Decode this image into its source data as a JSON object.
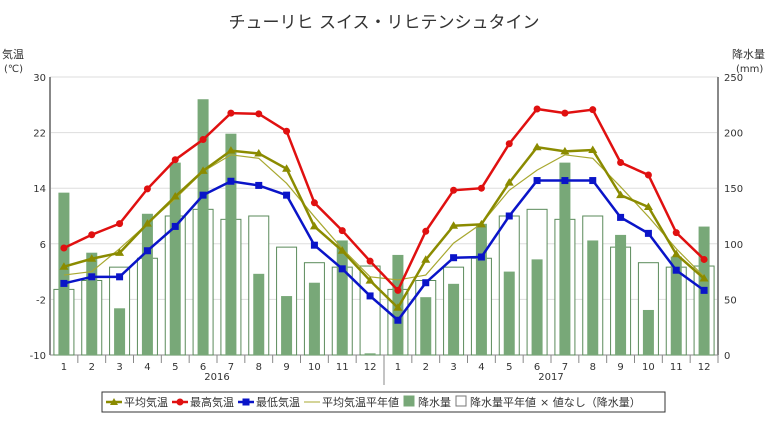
{
  "chart_data": {
    "type": "bar+line",
    "title": "チューリヒ スイス・リヒテンシュタイン",
    "ylabel_left": "気温",
    "yunit_left": "(℃)",
    "ylabel_right": "降水量",
    "yunit_right": "(mm)",
    "ylim_left": [
      -10,
      30
    ],
    "yticks_left": [
      -10,
      -2,
      6,
      14,
      22,
      30
    ],
    "ylim_right": [
      0,
      250
    ],
    "yticks_right": [
      0,
      50,
      100,
      150,
      200,
      250
    ],
    "categories": [
      "1",
      "2",
      "3",
      "4",
      "5",
      "6",
      "7",
      "8",
      "9",
      "10",
      "11",
      "12",
      "1",
      "2",
      "3",
      "4",
      "5",
      "6",
      "7",
      "8",
      "9",
      "10",
      "11",
      "12"
    ],
    "year_labels": [
      "2016",
      "2017"
    ],
    "grid": true,
    "legend_position": "bottom",
    "series": [
      {
        "name": "平均気温",
        "type": "line",
        "axis": "left",
        "color": "#8b8b00",
        "marker": "triangle",
        "values": [
          2.7,
          3.85,
          4.7,
          8.9,
          12.8,
          16.5,
          19.4,
          19.0,
          16.8,
          8.5,
          5.0,
          0.7,
          -3.2,
          3.7,
          8.6,
          8.8,
          14.8,
          19.9,
          19.3,
          19.5,
          13.0,
          11.3,
          4.5,
          1.0
        ]
      },
      {
        "name": "最高気温",
        "type": "line",
        "axis": "left",
        "color": "#e01010",
        "marker": "circle",
        "values": [
          5.4,
          7.3,
          8.9,
          13.9,
          18.1,
          21.0,
          24.8,
          24.7,
          22.2,
          11.9,
          7.9,
          3.5,
          -0.7,
          7.8,
          13.7,
          14.0,
          20.4,
          25.4,
          24.8,
          25.3,
          17.7,
          15.9,
          7.6,
          3.75
        ]
      },
      {
        "name": "最低気温",
        "type": "line",
        "axis": "left",
        "color": "#0a14c8",
        "marker": "square",
        "values": [
          0.3,
          1.25,
          1.25,
          5.0,
          8.5,
          13.0,
          15.0,
          14.4,
          13.0,
          5.8,
          2.4,
          -1.5,
          -5.0,
          0.4,
          4.0,
          4.1,
          10.0,
          15.1,
          15.1,
          15.1,
          9.8,
          7.5,
          2.2,
          -0.7
        ]
      },
      {
        "name": "平均気温平年値",
        "type": "line",
        "axis": "left",
        "color": "#a8a830",
        "marker": "none",
        "values": [
          1.5,
          2.0,
          5.3,
          8.9,
          12.5,
          16.4,
          18.8,
          18.3,
          14.7,
          9.9,
          5.3,
          1.25,
          0.8,
          1.5,
          6.1,
          8.9,
          13.7,
          16.6,
          18.8,
          18.3,
          14.2,
          9.9,
          5.3,
          1.25
        ]
      },
      {
        "name": "降水量",
        "type": "bar",
        "axis": "right",
        "color": "#78a878",
        "values": [
          146,
          92,
          42,
          127,
          173,
          230,
          199,
          73,
          53,
          65,
          103,
          1.5,
          90,
          52,
          64,
          118,
          75,
          86,
          173,
          103,
          108,
          40.5,
          88.5,
          115.5
        ]
      },
      {
        "name": "降水量平年値",
        "type": "bar-outline",
        "axis": "right",
        "color": "#5a8a5a",
        "values": [
          59,
          67,
          79,
          87,
          125,
          131,
          122,
          125,
          97,
          83,
          79,
          80,
          59,
          67,
          79,
          87,
          125,
          131,
          122,
          125,
          97,
          83,
          79,
          80
        ]
      }
    ],
    "legend_extra": "× 値なし（降水量）"
  }
}
